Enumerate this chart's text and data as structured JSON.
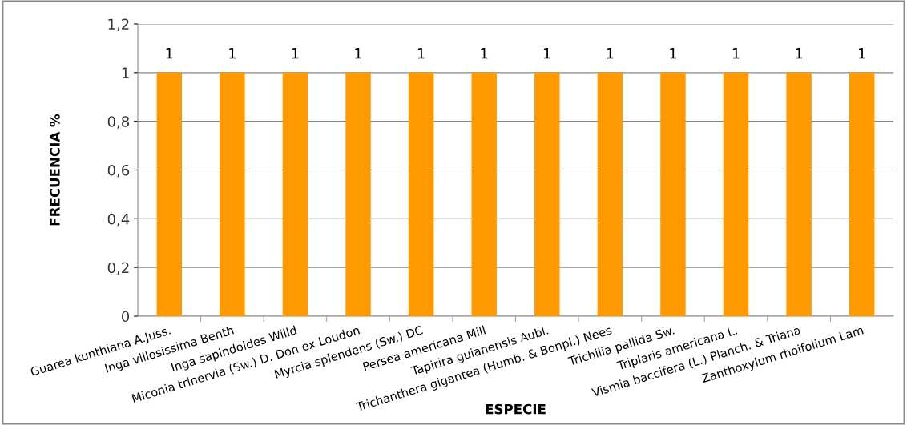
{
  "chart_data": {
    "type": "bar",
    "xlabel": "ESPECIE",
    "ylabel": "FRECUENCIA %",
    "categories": [
      "Guarea kunthiana A.Juss.",
      "Inga villosissima Benth",
      "Inga sapindoides Willd",
      "Miconia trinervia (Sw.) D. Don ex Loudon",
      "Myrcia splendens (Sw.) DC",
      "Persea americana Mill",
      "Tapirira guianensis Aubl.",
      "Trichanthera gigantea (Humb. & Bonpl.) Nees",
      "Trichilia pallida Sw.",
      "Triplaris americana L.",
      "Vismia baccifera (L.) Planch. & Triana",
      "Zanthoxylum rhoifolium Lam"
    ],
    "values": [
      1,
      1,
      1,
      1,
      1,
      1,
      1,
      1,
      1,
      1,
      1,
      1
    ],
    "color": "#ff9900",
    "ylim": [
      0,
      1.2
    ],
    "yticks": [
      0,
      {
        "value": 0.2,
        "label": "0,2"
      },
      {
        "value": 0.4,
        "label": "0,4"
      },
      {
        "value": 0.6,
        "label": "0,6"
      },
      {
        "value": 0.8,
        "label": "0,8"
      },
      1,
      {
        "value": 1.2,
        "label": "1,2"
      }
    ],
    "grid": "y",
    "data_labels": true,
    "legend": false
  }
}
